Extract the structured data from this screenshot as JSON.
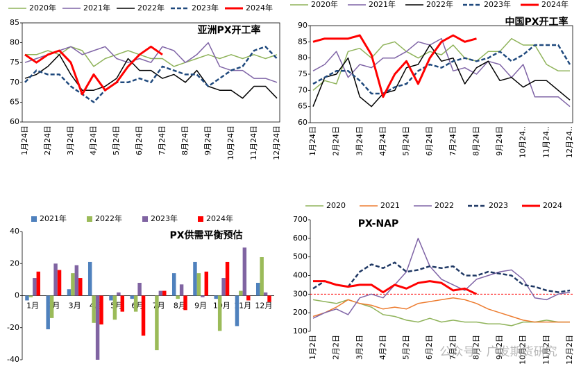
{
  "chart_data": [
    {
      "type": "line",
      "title": "亚洲PX开工率",
      "categories": [
        "1月24日",
        null,
        "2月24日",
        null,
        "3月24日",
        null,
        "4月24日",
        null,
        "5月24日",
        null,
        "6月24日",
        null,
        "7月24日",
        null,
        "8月24日",
        null,
        "9月24日",
        null,
        "10月24日",
        null,
        "11月24日",
        null,
        "12月24日"
      ],
      "ylim": [
        60,
        85
      ],
      "yticks": [
        60,
        65,
        70,
        75,
        80,
        85
      ],
      "series": [
        {
          "name": "2020年",
          "color": "#8fb35a",
          "linewidth": 1.5,
          "dashed": false,
          "values": [
            77,
            77,
            78,
            77,
            79,
            78,
            74,
            76,
            77,
            78,
            77,
            76,
            76,
            74,
            75,
            76,
            77,
            76,
            77,
            76,
            77,
            76,
            77
          ]
        },
        {
          "name": "2021年",
          "color": "#7f64a6",
          "linewidth": 1.5,
          "dashed": false,
          "values": [
            75,
            76,
            77,
            78,
            79,
            77,
            78,
            79,
            76,
            75,
            76,
            75,
            79,
            78,
            75,
            77,
            80,
            74,
            73,
            73,
            71,
            71,
            70
          ]
        },
        {
          "name": "2022年",
          "color": "#000000",
          "linewidth": 1.5,
          "dashed": false,
          "values": [
            71,
            72,
            74,
            77,
            72,
            68,
            68,
            69,
            71,
            76,
            73,
            73,
            71,
            72,
            70,
            73,
            69,
            68,
            68,
            66,
            69,
            69,
            66
          ]
        },
        {
          "name": "2023年",
          "color": "#1f497d",
          "linewidth": 2.5,
          "dashed": true,
          "values": [
            70,
            73,
            72,
            72,
            69,
            67,
            65,
            68,
            70,
            70,
            71,
            70,
            74,
            73,
            72,
            72,
            69,
            71,
            73,
            74,
            78,
            79,
            76
          ]
        },
        {
          "name": "2024年",
          "color": "#ff0000",
          "linewidth": 3,
          "dashed": false,
          "values": [
            77,
            75,
            77,
            78,
            75,
            67,
            72,
            68,
            70,
            74,
            77,
            79,
            77,
            null,
            null,
            null,
            null,
            null,
            null,
            null,
            null,
            null,
            null
          ]
        }
      ]
    },
    {
      "type": "line",
      "title": "中国PX开工率",
      "categories": [
        "1月24日",
        null,
        "2月24日",
        null,
        "3月24日",
        null,
        "4月24日",
        null,
        "5月24日",
        null,
        "6月24日",
        null,
        "7月24日",
        null,
        "8月24日",
        null,
        "9月24日",
        null,
        "10月24..",
        null,
        "11月24..",
        null,
        "12月24.."
      ],
      "ylim": [
        60,
        90
      ],
      "yticks": [
        60,
        65,
        70,
        75,
        80,
        85,
        90
      ],
      "series": [
        {
          "name": "2020年",
          "color": "#8fb35a",
          "linewidth": 1.5,
          "dashed": false,
          "values": [
            70,
            73,
            72,
            82,
            83,
            80,
            84,
            85,
            82,
            80,
            82,
            81,
            84,
            80,
            79,
            82,
            82,
            86,
            84,
            84,
            78,
            76,
            76
          ]
        },
        {
          "name": "2021年",
          "color": "#7f64a6",
          "linewidth": 1.5,
          "dashed": false,
          "values": [
            76,
            78,
            82,
            74,
            78,
            77,
            80,
            80,
            82,
            85,
            84,
            86,
            76,
            77,
            75,
            79,
            78,
            74,
            78,
            68,
            68,
            68,
            65
          ]
        },
        {
          "name": "2022年",
          "color": "#000000",
          "linewidth": 1.5,
          "dashed": false,
          "values": [
            65,
            74,
            75,
            80,
            68,
            65,
            69,
            70,
            77,
            78,
            84,
            79,
            80,
            72,
            77,
            79,
            73,
            74,
            71,
            73,
            73,
            70,
            67
          ]
        },
        {
          "name": "2023年",
          "color": "#1f497d",
          "linewidth": 2.5,
          "dashed": true,
          "values": [
            72,
            74,
            76,
            76,
            73,
            69,
            69,
            71,
            72,
            76,
            78,
            77,
            79,
            80,
            79,
            80,
            82,
            79,
            81,
            84,
            84,
            84,
            78
          ]
        },
        {
          "name": "2024年",
          "color": "#ff0000",
          "linewidth": 3,
          "dashed": false,
          "values": [
            85,
            86,
            86,
            86,
            87,
            81,
            68,
            75,
            79,
            72,
            80,
            85,
            87,
            85,
            86,
            null,
            null,
            null,
            null,
            null,
            null,
            null,
            null
          ]
        }
      ]
    },
    {
      "type": "bar",
      "title": "PX供需平衡预估",
      "categories": [
        "1月",
        "2月",
        "3月",
        "4月",
        "5月",
        "6月",
        "7月",
        "8月",
        "9月",
        "10月",
        "11月",
        "12月"
      ],
      "ylim": [
        -40,
        40
      ],
      "yticks": [
        -40,
        -20,
        0,
        20,
        40
      ],
      "series": [
        {
          "name": "2021年",
          "color": "#4f81bd",
          "values": [
            -3,
            -21,
            4,
            21,
            -3,
            -2,
            0,
            14,
            21,
            -2,
            -19,
            8
          ]
        },
        {
          "name": "2022年",
          "color": "#9bbb59",
          "values": [
            -1,
            -14,
            14,
            -17,
            -15,
            -10,
            -34,
            -2,
            14,
            -22,
            3,
            24
          ]
        },
        {
          "name": "2023年",
          "color": "#8064a2",
          "values": [
            11,
            20,
            19,
            -40,
            2,
            8,
            3,
            7,
            -1,
            11,
            30,
            2
          ]
        },
        {
          "name": "2024年",
          "color": "#ff0000",
          "values": [
            15,
            16,
            11,
            -18,
            -10,
            -25,
            3,
            -9,
            15,
            21,
            -3,
            -4
          ]
        }
      ]
    },
    {
      "type": "line",
      "title": "PX-NAP",
      "categories": [
        "1月2日",
        null,
        "2月2日",
        null,
        "3月2日",
        null,
        "4月2日",
        null,
        "5月2日",
        null,
        "6月2日",
        null,
        "7月2日",
        null,
        "8月2日",
        null,
        "9月2日",
        null,
        "10月2日",
        null,
        "11月2日",
        null,
        "12月2日"
      ],
      "ylim": [
        100,
        700
      ],
      "yticks": [
        100,
        200,
        300,
        400,
        500,
        600,
        700
      ],
      "ref_line": {
        "value": 300,
        "color": "#ff0000"
      },
      "watermark": "公众号 · 广发期货研究",
      "series": [
        {
          "name": "2020",
          "color": "#8fb35a",
          "linewidth": 1.5,
          "dashed": false,
          "values": [
            270,
            260,
            250,
            270,
            250,
            230,
            190,
            180,
            160,
            150,
            170,
            150,
            160,
            150,
            150,
            140,
            140,
            130,
            150,
            150,
            160,
            150,
            150
          ]
        },
        {
          "name": "2021",
          "color": "#ed7d31",
          "linewidth": 1.5,
          "dashed": false,
          "values": [
            180,
            200,
            230,
            270,
            250,
            240,
            220,
            230,
            220,
            250,
            260,
            270,
            280,
            270,
            250,
            220,
            200,
            180,
            160,
            150,
            150,
            150,
            150
          ]
        },
        {
          "name": "2022",
          "color": "#7f64a6",
          "linewidth": 1.5,
          "dashed": false,
          "values": [
            170,
            200,
            220,
            190,
            280,
            300,
            280,
            350,
            420,
            600,
            450,
            380,
            350,
            320,
            380,
            400,
            420,
            430,
            380,
            280,
            270,
            300,
            310
          ]
        },
        {
          "name": "2023",
          "color": "#1f3864",
          "linewidth": 2.5,
          "dashed": true,
          "values": [
            330,
            370,
            350,
            340,
            420,
            460,
            440,
            470,
            420,
            430,
            450,
            440,
            450,
            400,
            400,
            420,
            410,
            400,
            350,
            340,
            320,
            310,
            320
          ]
        },
        {
          "name": "2024",
          "color": "#ff0000",
          "linewidth": 3,
          "dashed": false,
          "values": [
            370,
            370,
            350,
            340,
            350,
            350,
            310,
            350,
            330,
            360,
            370,
            360,
            320,
            330,
            300,
            null,
            null,
            null,
            null,
            null,
            null,
            null,
            null
          ]
        }
      ]
    }
  ]
}
